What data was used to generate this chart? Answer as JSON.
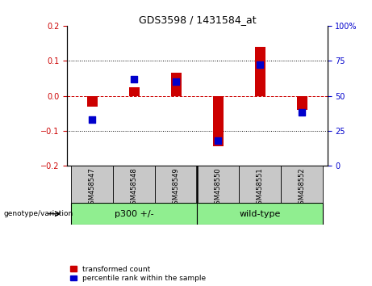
{
  "title": "GDS3598 / 1431584_at",
  "samples": [
    "GSM458547",
    "GSM458548",
    "GSM458549",
    "GSM458550",
    "GSM458551",
    "GSM458552"
  ],
  "red_values": [
    -0.03,
    0.025,
    0.065,
    -0.145,
    0.14,
    -0.04
  ],
  "blue_values_pct": [
    33,
    62,
    60,
    18,
    72,
    38
  ],
  "ylim_left": [
    -0.2,
    0.2
  ],
  "ylim_right": [
    0,
    100
  ],
  "yticks_left": [
    -0.2,
    -0.1,
    0.0,
    0.1,
    0.2
  ],
  "yticks_right": [
    0,
    25,
    50,
    75,
    100
  ],
  "red_color": "#CC0000",
  "blue_color": "#0000CC",
  "bar_width": 0.25,
  "legend_red": "transformed count",
  "legend_blue": "percentile rank within the sample",
  "group_label": "genotype/variation",
  "group1_label": "p300 +/-",
  "group2_label": "wild-type",
  "group_color": "#90EE90",
  "sample_box_color": "#C8C8C8",
  "tick_color_left": "#CC0000",
  "tick_color_right": "#0000CC",
  "title_fontsize": 9,
  "tick_fontsize": 7,
  "group_fontsize": 8,
  "sample_fontsize": 6
}
